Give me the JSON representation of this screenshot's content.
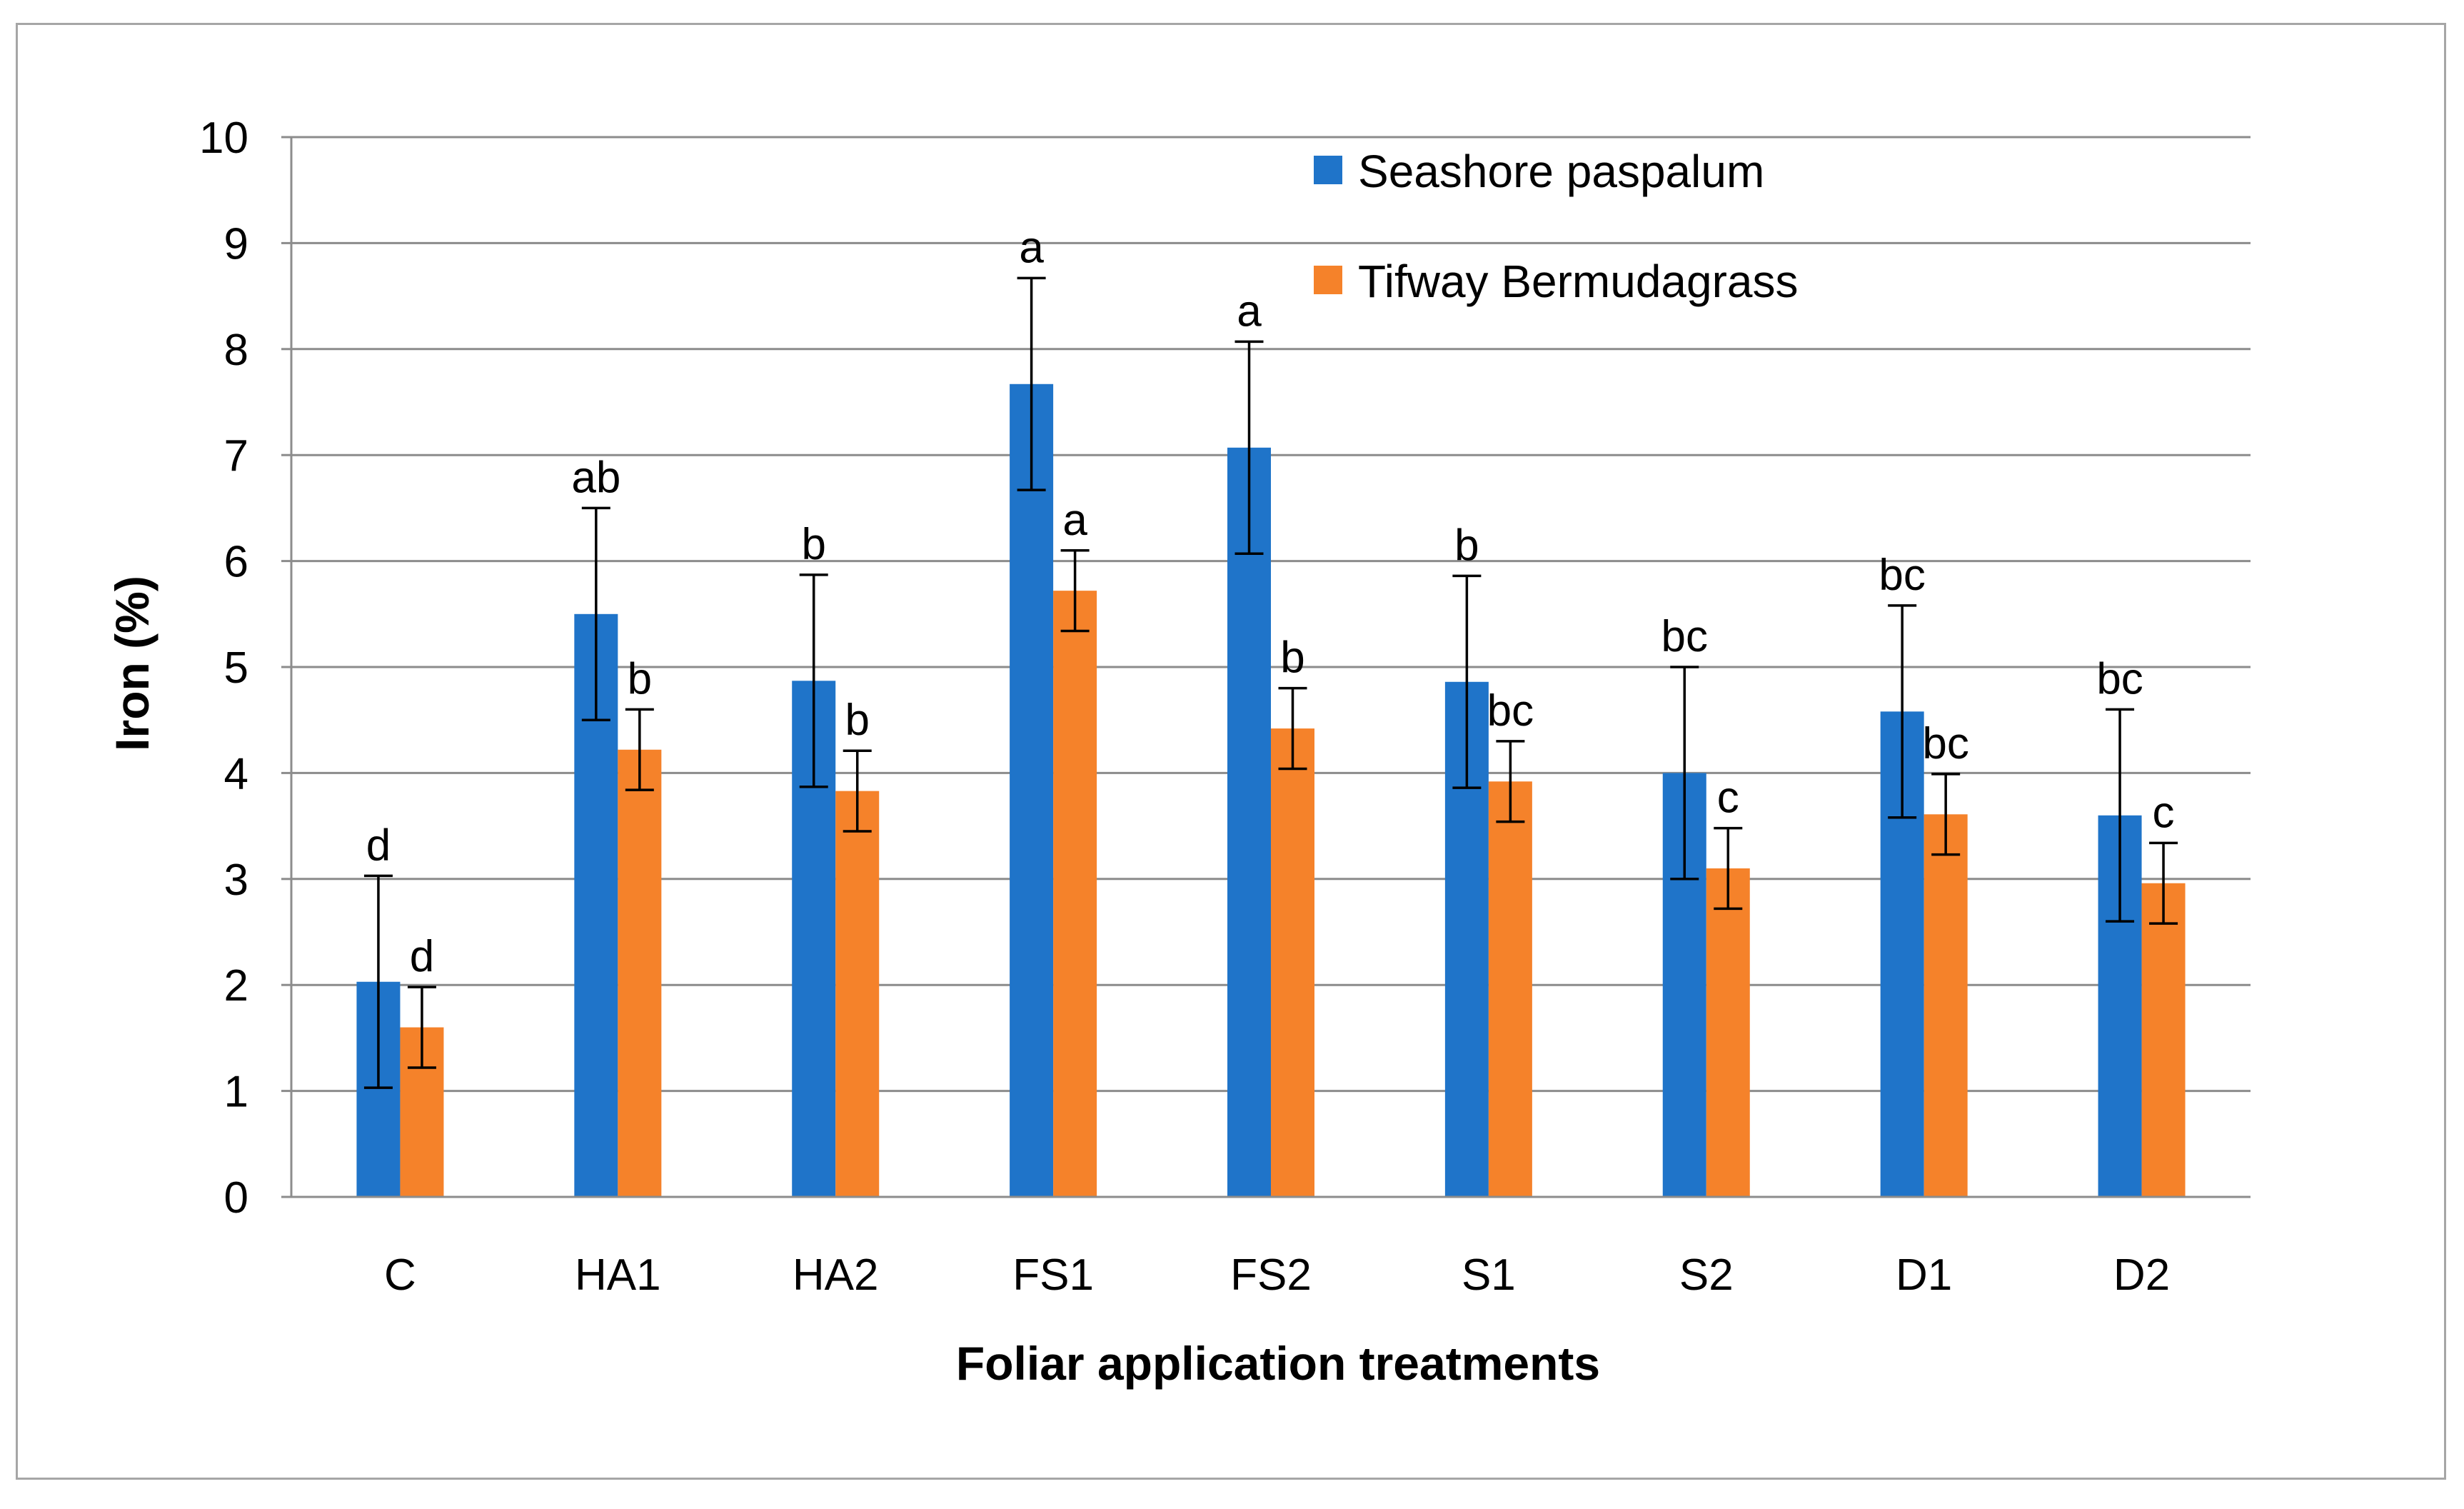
{
  "chart_data": {
    "type": "bar",
    "title": "",
    "xlabel": "Foliar application treatments",
    "ylabel": "Iron (%)",
    "ylim": [
      0,
      10
    ],
    "yticks": [
      0,
      1,
      2,
      3,
      4,
      5,
      6,
      7,
      8,
      9,
      10
    ],
    "grid": true,
    "legend_position": "top-right",
    "categories": [
      "C",
      "HA1",
      "HA2",
      "FS1",
      "FS2",
      "S1",
      "S2",
      "D1",
      "D2"
    ],
    "series": [
      {
        "name": "Seashore paspalum",
        "color": "#1f74c9",
        "values": [
          2.03,
          5.5,
          4.87,
          7.67,
          7.07,
          4.86,
          4.0,
          4.58,
          3.6
        ],
        "errors": [
          1.0,
          1.0,
          1.0,
          1.0,
          1.0,
          1.0,
          1.0,
          1.0,
          1.0
        ],
        "letters": [
          "d",
          "ab",
          "b",
          "a",
          "a",
          "b",
          "bc",
          "bc",
          "bc"
        ]
      },
      {
        "name": "Tifway Bermudagrass",
        "color": "#f5822a",
        "values": [
          1.6,
          4.22,
          3.83,
          5.72,
          4.42,
          3.92,
          3.1,
          3.61,
          2.96
        ],
        "errors": [
          0.38,
          0.38,
          0.38,
          0.38,
          0.38,
          0.38,
          0.38,
          0.38,
          0.38
        ],
        "letters": [
          "d",
          "b",
          "b",
          "a",
          "b",
          "bc",
          "c",
          "bc",
          "c"
        ]
      }
    ]
  }
}
